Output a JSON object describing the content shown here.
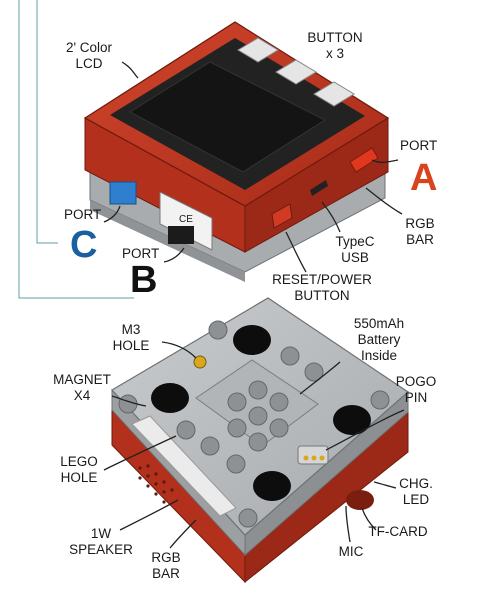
{
  "top_labels": {
    "lcd": [
      "2' Color",
      "LCD"
    ],
    "button": [
      "BUTTON",
      "x 3"
    ],
    "typec": [
      "TypeC",
      "USB"
    ],
    "rgb_bar": [
      "RGB",
      "BAR"
    ],
    "reset_power": [
      "RESET/POWER",
      "BUTTON"
    ]
  },
  "ports": {
    "a": {
      "word": "PORT",
      "letter": "A",
      "color": "#d9441f"
    },
    "b": {
      "word": "PORT",
      "letter": "B",
      "color": "#111111"
    },
    "c": {
      "word": "PORT",
      "letter": "C",
      "color": "#1a5f9e"
    }
  },
  "bottom_labels": {
    "m3_hole": [
      "M3",
      "HOLE"
    ],
    "battery": [
      "550mAh",
      "Battery",
      "Inside"
    ],
    "magnet": [
      "MAGNET",
      "X4"
    ],
    "pogo_pin": [
      "POGO",
      "PIN"
    ],
    "lego_hole": [
      "LEGO",
      "HOLE"
    ],
    "chg_led": [
      "CHG.",
      "LED"
    ],
    "speaker": [
      "1W",
      "SPEAKER"
    ],
    "rgb_bar": [
      "RGB",
      "BAR"
    ],
    "tf_card": "TF-CARD",
    "mic": "MIC"
  },
  "colors": {
    "body_red": "#b8321e",
    "body_red_dark": "#8e2414",
    "grey_case": "#b9bcbf",
    "screen": "#151515"
  }
}
